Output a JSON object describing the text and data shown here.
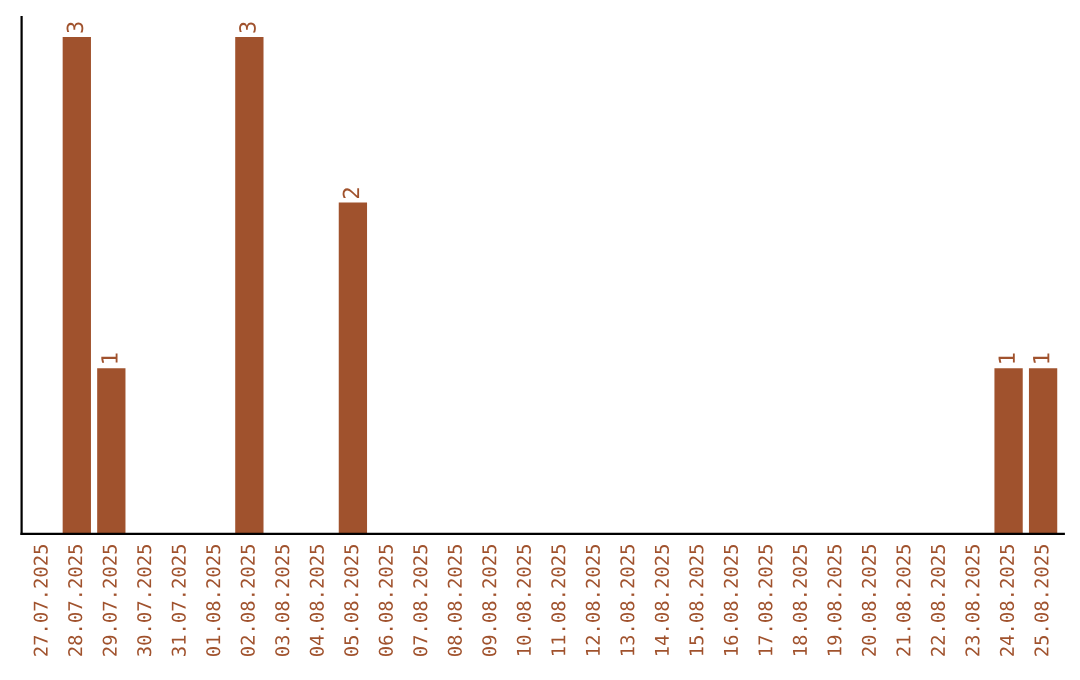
{
  "chart_data": {
    "type": "bar",
    "categories": [
      "27.07.2025",
      "28.07.2025",
      "29.07.2025",
      "30.07.2025",
      "31.07.2025",
      "01.08.2025",
      "02.08.2025",
      "03.08.2025",
      "04.08.2025",
      "05.08.2025",
      "06.08.2025",
      "07.08.2025",
      "08.08.2025",
      "09.08.2025",
      "10.08.2025",
      "11.08.2025",
      "12.08.2025",
      "13.08.2025",
      "14.08.2025",
      "15.08.2025",
      "16.08.2025",
      "17.08.2025",
      "18.08.2025",
      "19.08.2025",
      "20.08.2025",
      "21.08.2025",
      "22.08.2025",
      "23.08.2025",
      "24.08.2025",
      "25.08.2025"
    ],
    "values": [
      null,
      3,
      1,
      null,
      null,
      null,
      3,
      null,
      null,
      2,
      null,
      null,
      null,
      null,
      null,
      null,
      null,
      null,
      null,
      null,
      null,
      null,
      null,
      null,
      null,
      null,
      null,
      null,
      1,
      1
    ],
    "color": "#a0522d",
    "data_labels": true,
    "tick_labels": "x",
    "grid": false
  }
}
